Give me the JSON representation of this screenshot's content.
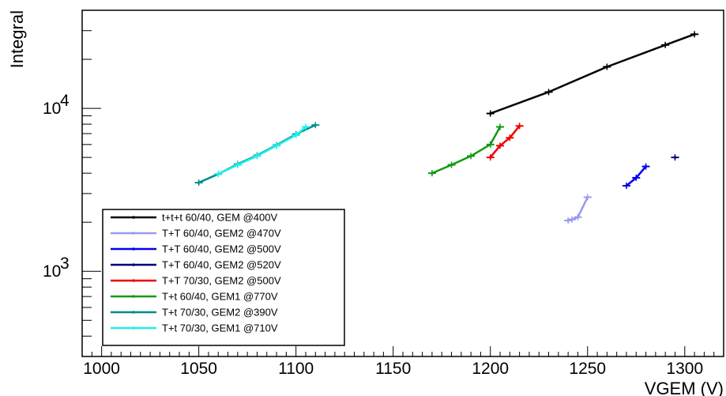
{
  "chart_data": {
    "type": "line",
    "xlabel": "VGEM (V)",
    "ylabel": "Integral",
    "xlim": [
      990,
      1320
    ],
    "ylim": [
      300,
      40000
    ],
    "y_scale": "log",
    "x_ticks": [
      {
        "value": 1000,
        "label": "1000"
      },
      {
        "value": 1050,
        "label": "1050"
      },
      {
        "value": 1100,
        "label": "1100"
      },
      {
        "value": 1150,
        "label": "1150"
      },
      {
        "value": 1200,
        "label": "1200"
      },
      {
        "value": 1250,
        "label": "1250"
      },
      {
        "value": 1300,
        "label": "1300"
      }
    ],
    "y_ticks": [
      {
        "value": 1000,
        "base": "10",
        "exp": "3"
      },
      {
        "value": 10000,
        "base": "10",
        "exp": "4"
      }
    ],
    "grid": false,
    "legend_position": "bottom-left",
    "series": [
      {
        "name": "t+t+t 60/40, GEM @400V",
        "color": "#000000",
        "points": [
          [
            1200,
            9300
          ],
          [
            1230,
            12600
          ],
          [
            1260,
            18000
          ],
          [
            1290,
            24500
          ],
          [
            1305,
            28500
          ]
        ]
      },
      {
        "name": "T+T 60/40, GEM2 @470V",
        "color": "#9999ee",
        "points": [
          [
            1240,
            2050
          ],
          [
            1242,
            2080
          ],
          [
            1245,
            2150
          ],
          [
            1250,
            2850
          ]
        ]
      },
      {
        "name": "T+T 60/40, GEM2 @500V",
        "color": "#0000ee",
        "points": [
          [
            1270,
            3350
          ],
          [
            1275,
            3750
          ],
          [
            1280,
            4400
          ]
        ]
      },
      {
        "name": "T+T 60/40, GEM2 @520V",
        "color": "#000080",
        "points": [
          [
            1295,
            5000
          ]
        ]
      },
      {
        "name": "T+T 70/30, GEM2 @500V",
        "color": "#ee0000",
        "points": [
          [
            1200,
            5000
          ],
          [
            1205,
            5900
          ],
          [
            1210,
            6600
          ],
          [
            1215,
            7800
          ]
        ]
      },
      {
        "name": "T+t 60/40, GEM1 @770V",
        "color": "#119911",
        "points": [
          [
            1170,
            4000
          ],
          [
            1180,
            4500
          ],
          [
            1190,
            5100
          ],
          [
            1200,
            6000
          ],
          [
            1205,
            7700
          ]
        ]
      },
      {
        "name": "T+t 70/30, GEM2 @390V",
        "color": "#008c8c",
        "points": [
          [
            1050,
            3500
          ],
          [
            1060,
            3950
          ],
          [
            1070,
            4550
          ],
          [
            1080,
            5150
          ],
          [
            1090,
            5950
          ],
          [
            1100,
            6950
          ],
          [
            1110,
            7900
          ]
        ]
      },
      {
        "name": "T+t 70/30, GEM1 @710V",
        "color": "#22eeee",
        "points": [
          [
            1060,
            3950
          ],
          [
            1070,
            4500
          ],
          [
            1080,
            5100
          ],
          [
            1090,
            5900
          ],
          [
            1100,
            6850
          ],
          [
            1105,
            7700
          ]
        ]
      }
    ]
  }
}
